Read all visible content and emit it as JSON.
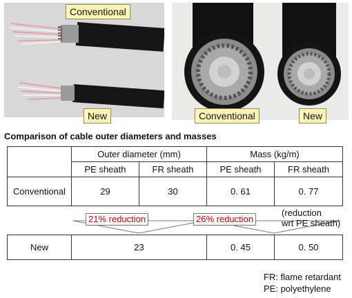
{
  "photos": {
    "left_top_label": "Conventional",
    "left_bottom_label": "New",
    "right_left_label": "Conventional",
    "right_right_label": "New"
  },
  "heading": "Comparison of cable outer diameters and masses",
  "table": {
    "outer_diameter_header": "Outer diameter (mm)",
    "mass_header": "Mass (kg/m)",
    "sub_headers": [
      "PE sheath",
      "FR sheath",
      "PE sheath",
      "FR sheath"
    ],
    "conventional": {
      "label": "Conventional",
      "values": [
        "29",
        "30",
        "0. 61",
        "0. 77"
      ]
    },
    "new": {
      "label": "New",
      "diameter": "23",
      "mass_pe": "0. 45",
      "mass_fr": "0. 50"
    }
  },
  "reductions": {
    "diameter": "21% reduction",
    "mass": "26% reduction",
    "note_line1": "(reduction",
    "note_line2": "wrt PE sheath)"
  },
  "footnotes": [
    "FR: flame retardant",
    "PE: polyethylene"
  ]
}
